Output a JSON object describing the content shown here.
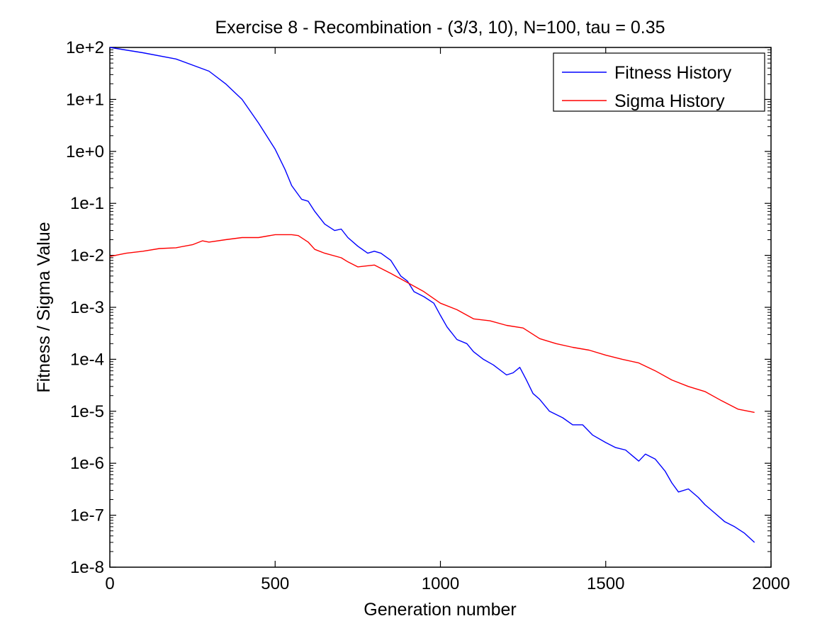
{
  "chart_data": {
    "type": "line",
    "title": "Exercise 8 - Recombination - (3/3, 10), N=100, tau = 0.35",
    "xlabel": "Generation number",
    "ylabel": "Fitness / Sigma Value",
    "xlim": [
      0,
      2000
    ],
    "ylim": [
      1e-08,
      100
    ],
    "yscale": "log",
    "grid": false,
    "legend_position": "top-right",
    "x_ticks": [
      0,
      500,
      1000,
      1500,
      2000
    ],
    "x_tick_labels": [
      "0",
      "500",
      "1000",
      "1500",
      "2000"
    ],
    "y_ticks": [
      1e-08,
      1e-07,
      1e-06,
      1e-05,
      0.0001,
      0.001,
      0.01,
      0.1,
      1,
      10,
      100
    ],
    "y_tick_labels": [
      "1e-8",
      "1e-7",
      "1e-6",
      "1e-5",
      "1e-4",
      "1e-3",
      "1e-2",
      "1e-1",
      "1e+0",
      "1e+1",
      "1e+2"
    ],
    "series": [
      {
        "name": "Fitness History",
        "color": "#0000ff",
        "points": [
          [
            0,
            100
          ],
          [
            100,
            79
          ],
          [
            200,
            60
          ],
          [
            300,
            35
          ],
          [
            350,
            20
          ],
          [
            400,
            10
          ],
          [
            450,
            3.5
          ],
          [
            500,
            1.1
          ],
          [
            530,
            0.45
          ],
          [
            550,
            0.22
          ],
          [
            580,
            0.12
          ],
          [
            600,
            0.11
          ],
          [
            620,
            0.07
          ],
          [
            650,
            0.04
          ],
          [
            680,
            0.03
          ],
          [
            700,
            0.032
          ],
          [
            720,
            0.022
          ],
          [
            750,
            0.015
          ],
          [
            780,
            0.011
          ],
          [
            800,
            0.012
          ],
          [
            820,
            0.011
          ],
          [
            850,
            0.008
          ],
          [
            880,
            0.004
          ],
          [
            900,
            0.0032
          ],
          [
            920,
            0.002
          ],
          [
            950,
            0.0016
          ],
          [
            980,
            0.0012
          ],
          [
            1000,
            0.0007
          ],
          [
            1020,
            0.00042
          ],
          [
            1050,
            0.00024
          ],
          [
            1080,
            0.0002
          ],
          [
            1100,
            0.00014
          ],
          [
            1130,
            0.0001
          ],
          [
            1160,
            7.8e-05
          ],
          [
            1200,
            5e-05
          ],
          [
            1220,
            5.5e-05
          ],
          [
            1240,
            7e-05
          ],
          [
            1260,
            4e-05
          ],
          [
            1280,
            2.2e-05
          ],
          [
            1300,
            1.7e-05
          ],
          [
            1330,
            1e-05
          ],
          [
            1370,
            7.5e-06
          ],
          [
            1400,
            5.5e-06
          ],
          [
            1430,
            5.5e-06
          ],
          [
            1460,
            3.5e-06
          ],
          [
            1500,
            2.5e-06
          ],
          [
            1530,
            2e-06
          ],
          [
            1560,
            1.8e-06
          ],
          [
            1600,
            1.1e-06
          ],
          [
            1620,
            1.5e-06
          ],
          [
            1650,
            1.2e-06
          ],
          [
            1680,
            7e-07
          ],
          [
            1700,
            4.2e-07
          ],
          [
            1720,
            2.8e-07
          ],
          [
            1750,
            3.2e-07
          ],
          [
            1780,
            2.2e-07
          ],
          [
            1800,
            1.6e-07
          ],
          [
            1830,
            1.1e-07
          ],
          [
            1860,
            7.5e-08
          ],
          [
            1890,
            6e-08
          ],
          [
            1920,
            4.5e-08
          ],
          [
            1950,
            3e-08
          ]
        ]
      },
      {
        "name": "Sigma History",
        "color": "#ff0000",
        "points": [
          [
            0,
            0.0095
          ],
          [
            50,
            0.011
          ],
          [
            100,
            0.012
          ],
          [
            150,
            0.0135
          ],
          [
            200,
            0.014
          ],
          [
            250,
            0.016
          ],
          [
            280,
            0.019
          ],
          [
            300,
            0.018
          ],
          [
            350,
            0.02
          ],
          [
            400,
            0.022
          ],
          [
            450,
            0.022
          ],
          [
            500,
            0.025
          ],
          [
            550,
            0.025
          ],
          [
            570,
            0.024
          ],
          [
            600,
            0.018
          ],
          [
            620,
            0.013
          ],
          [
            650,
            0.011
          ],
          [
            700,
            0.009
          ],
          [
            720,
            0.0075
          ],
          [
            750,
            0.006
          ],
          [
            800,
            0.0065
          ],
          [
            850,
            0.0045
          ],
          [
            900,
            0.003
          ],
          [
            950,
            0.002
          ],
          [
            1000,
            0.0012
          ],
          [
            1050,
            0.0009
          ],
          [
            1100,
            0.0006
          ],
          [
            1150,
            0.00055
          ],
          [
            1200,
            0.00045
          ],
          [
            1250,
            0.0004
          ],
          [
            1300,
            0.00025
          ],
          [
            1350,
            0.0002
          ],
          [
            1400,
            0.00017
          ],
          [
            1450,
            0.00015
          ],
          [
            1500,
            0.00012
          ],
          [
            1550,
            0.0001
          ],
          [
            1600,
            8.5e-05
          ],
          [
            1650,
            6e-05
          ],
          [
            1700,
            4e-05
          ],
          [
            1750,
            3e-05
          ],
          [
            1800,
            2.4e-05
          ],
          [
            1850,
            1.6e-05
          ],
          [
            1900,
            1.1e-05
          ],
          [
            1950,
            9.5e-06
          ]
        ]
      }
    ]
  }
}
